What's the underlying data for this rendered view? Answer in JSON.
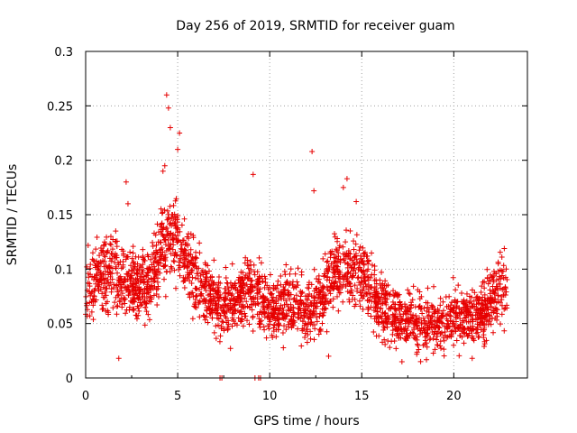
{
  "chart_data": {
    "type": "scatter",
    "title": "Day 256 of 2019, SRMTID for receiver guam",
    "xlabel": "GPS time / hours",
    "ylabel": "SRMTID / TECUs",
    "xlim": [
      0,
      24
    ],
    "ylim": [
      0,
      0.3
    ],
    "x_ticks": [
      "0",
      "5",
      "10",
      "15",
      "20"
    ],
    "x_tick_values": [
      0,
      5,
      10,
      15,
      20
    ],
    "y_ticks": [
      "0",
      "0.05",
      "0.1",
      "0.15",
      "0.2",
      "0.25",
      "0.3"
    ],
    "y_tick_values": [
      0,
      0.05,
      0.1,
      0.15,
      0.2,
      0.25,
      0.3
    ],
    "grid": true,
    "marker": "plus",
    "color": "#e60000",
    "series": [
      {
        "name": "SRMTID",
        "profile": [
          [
            0.0,
            0.08
          ],
          [
            0.5,
            0.09
          ],
          [
            1.0,
            0.095
          ],
          [
            1.5,
            0.1
          ],
          [
            2.0,
            0.09
          ],
          [
            2.5,
            0.085
          ],
          [
            3.0,
            0.08
          ],
          [
            3.5,
            0.09
          ],
          [
            4.0,
            0.11
          ],
          [
            4.5,
            0.13
          ],
          [
            5.0,
            0.12
          ],
          [
            5.5,
            0.1
          ],
          [
            6.0,
            0.09
          ],
          [
            6.5,
            0.08
          ],
          [
            7.0,
            0.07
          ],
          [
            7.5,
            0.065
          ],
          [
            8.0,
            0.07
          ],
          [
            8.5,
            0.075
          ],
          [
            9.0,
            0.085
          ],
          [
            9.5,
            0.075
          ],
          [
            10.0,
            0.065
          ],
          [
            10.5,
            0.065
          ],
          [
            11.0,
            0.07
          ],
          [
            11.5,
            0.065
          ],
          [
            12.0,
            0.055
          ],
          [
            12.5,
            0.065
          ],
          [
            13.0,
            0.085
          ],
          [
            13.5,
            0.095
          ],
          [
            14.0,
            0.105
          ],
          [
            14.5,
            0.1
          ],
          [
            15.0,
            0.095
          ],
          [
            15.5,
            0.08
          ],
          [
            16.0,
            0.065
          ],
          [
            16.5,
            0.06
          ],
          [
            17.0,
            0.055
          ],
          [
            17.5,
            0.055
          ],
          [
            18.0,
            0.05
          ],
          [
            18.5,
            0.05
          ],
          [
            19.0,
            0.05
          ],
          [
            19.5,
            0.05
          ],
          [
            20.0,
            0.055
          ],
          [
            20.5,
            0.055
          ],
          [
            21.0,
            0.055
          ],
          [
            21.5,
            0.06
          ],
          [
            22.0,
            0.07
          ],
          [
            22.5,
            0.08
          ],
          [
            22.9,
            0.085
          ]
        ],
        "spread": 0.028,
        "n_points": 2600,
        "seed": 256,
        "notable_points": [
          [
            1.8,
            0.018
          ],
          [
            4.4,
            0.26
          ],
          [
            4.5,
            0.248
          ],
          [
            4.6,
            0.23
          ],
          [
            5.1,
            0.225
          ],
          [
            5.0,
            0.21
          ],
          [
            4.3,
            0.195
          ],
          [
            2.2,
            0.18
          ],
          [
            9.1,
            0.187
          ],
          [
            12.3,
            0.208
          ],
          [
            12.4,
            0.172
          ],
          [
            14.2,
            0.183
          ],
          [
            14.0,
            0.175
          ],
          [
            14.7,
            0.162
          ],
          [
            4.2,
            0.19
          ],
          [
            2.3,
            0.16
          ],
          [
            13.2,
            0.02
          ],
          [
            18.2,
            0.015
          ],
          [
            21.0,
            0.018
          ],
          [
            7.3,
            0.0
          ],
          [
            7.4,
            0.0
          ],
          [
            9.2,
            0.0
          ],
          [
            9.4,
            0.0
          ],
          [
            9.5,
            0.0
          ]
        ]
      }
    ]
  }
}
